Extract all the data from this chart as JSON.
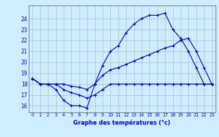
{
  "xlabel": "Graphe des températures (°c)",
  "bg_color": "#cceeff",
  "line_color": "#0000cc",
  "grid_color": "#aabbcc",
  "x": [
    0,
    1,
    2,
    3,
    4,
    5,
    6,
    7,
    8,
    9,
    10,
    11,
    12,
    13,
    14,
    15,
    16,
    17,
    18,
    19,
    20,
    21,
    22,
    23
  ],
  "s_top": [
    18.5,
    18.0,
    18.0,
    17.5,
    16.5,
    16.0,
    16.0,
    15.8,
    18.0,
    19.7,
    21.0,
    21.5,
    22.7,
    23.5,
    24.0,
    24.3,
    24.3,
    24.5,
    23.0,
    22.2,
    21.0,
    19.5,
    18.0,
    18.0
  ],
  "s_mid": [
    18.5,
    18.0,
    18.0,
    18.0,
    18.0,
    17.8,
    17.7,
    17.5,
    18.0,
    18.8,
    19.3,
    19.5,
    19.8,
    20.1,
    20.4,
    20.7,
    21.0,
    21.3,
    21.5,
    22.0,
    22.2,
    21.0,
    19.5,
    18.0
  ],
  "s_bot": [
    18.5,
    18.0,
    18.0,
    18.0,
    17.5,
    17.2,
    17.0,
    16.7,
    17.0,
    17.5,
    18.0,
    18.0,
    18.0,
    18.0,
    18.0,
    18.0,
    18.0,
    18.0,
    18.0,
    18.0,
    18.0,
    18.0,
    18.0,
    18.0
  ],
  "ylim": [
    15.4,
    25.2
  ],
  "yticks": [
    16,
    17,
    18,
    19,
    20,
    21,
    22,
    23,
    24
  ],
  "ytick_labels": [
    "16",
    "17",
    "18",
    "19",
    "20",
    "21",
    "22",
    "23",
    "24"
  ],
  "xtick_labels": [
    "0",
    "1",
    "2",
    "3",
    "4",
    "5",
    "6",
    "7",
    "8",
    "9",
    "10",
    "11",
    "12",
    "13",
    "14",
    "15",
    "16",
    "17",
    "18",
    "19",
    "20",
    "21",
    "22",
    "23"
  ]
}
